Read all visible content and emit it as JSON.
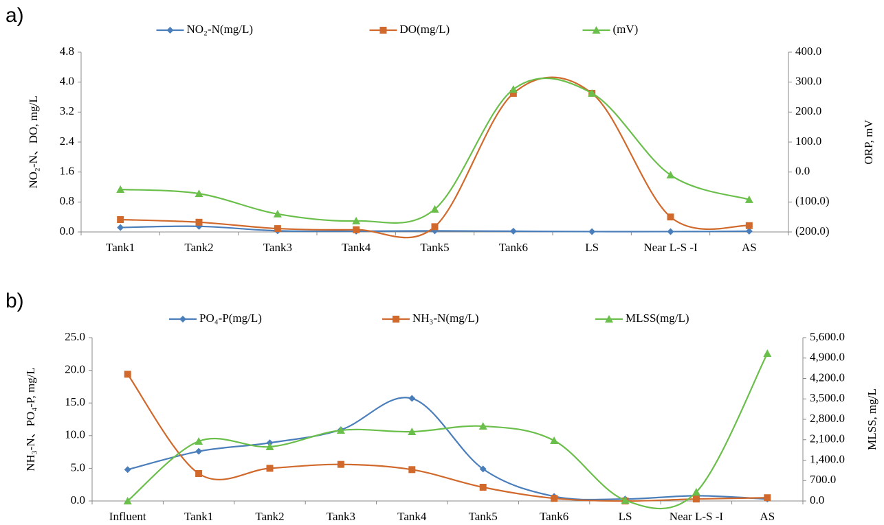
{
  "chart_data": [
    {
      "type": "line",
      "panel_label": "a)",
      "categories": [
        "Tank1",
        "Tank2",
        "Tank3",
        "Tank4",
        "Tank5",
        "Tank6",
        "LS",
        "Near L-S -I",
        "AS"
      ],
      "ylabel": "NO₂-N、DO, mg/L",
      "y2label": "ORP, mV",
      "ylim": [
        0,
        4.8
      ],
      "yticks": [
        {
          "value": 0,
          "label": "0.0"
        },
        0.8,
        1.6,
        2.4,
        3.2,
        {
          "value": 4,
          "label": "4.0"
        },
        4.8
      ],
      "y2lim": [
        -200,
        400
      ],
      "y2ticks": [
        {
          "value": -200,
          "label": "(200.0)"
        },
        {
          "value": -100,
          "label": "(100.0)"
        },
        {
          "value": 0,
          "label": "0.0"
        },
        {
          "value": 100,
          "label": "100.0"
        },
        {
          "value": 200,
          "label": "200.0"
        },
        {
          "value": 300,
          "label": "300.0"
        },
        {
          "value": 400,
          "label": "400.0"
        }
      ],
      "y2tick_negative_color": "#ff0000",
      "legend": "top",
      "series": [
        {
          "name": "NO₂-N(mg/L)",
          "color": "#4a7ebb",
          "marker": "diamond",
          "values": [
            0.12,
            0.15,
            0.03,
            0.02,
            0.03,
            0.02,
            0.01,
            0.01,
            0.02
          ]
        },
        {
          "name": "DO(mg/L)",
          "color": "#d0692b",
          "marker": "square",
          "values": [
            0.33,
            0.26,
            0.09,
            0.06,
            0.14,
            3.7,
            3.7,
            0.4,
            0.17
          ]
        },
        {
          "name": "(mV)",
          "color": "#6abf4b",
          "marker": "triangle",
          "axis": "y2",
          "values": [
            -58,
            -72,
            -140,
            -163,
            -124,
            276,
            263,
            -10,
            -92
          ]
        }
      ]
    },
    {
      "type": "line",
      "panel_label": "b)",
      "categories": [
        "Influent",
        "Tank1",
        "Tank2",
        "Tank3",
        "Tank4",
        "Tank5",
        "Tank6",
        "LS",
        "Near L-S -I",
        "AS"
      ],
      "ylabel": "NH₃-N、PO₄-P, mg/L",
      "y2label": "MLSS, mg/L",
      "ylim": [
        0,
        25
      ],
      "yticks": [
        {
          "value": 0,
          "label": "0.0"
        },
        {
          "value": 5,
          "label": "5.0"
        },
        {
          "value": 10,
          "label": "10.0"
        },
        {
          "value": 15,
          "label": "15.0"
        },
        {
          "value": 20,
          "label": "20.0"
        },
        {
          "value": 25,
          "label": "25.0"
        }
      ],
      "y2lim": [
        0,
        5600
      ],
      "y2ticks": [
        {
          "value": 0,
          "label": "0.0"
        },
        {
          "value": 700,
          "label": "700.0"
        },
        {
          "value": 1400,
          "label": "1,400.0"
        },
        {
          "value": 2100,
          "label": "2,100.0"
        },
        {
          "value": 2800,
          "label": "2,800.0"
        },
        {
          "value": 3500,
          "label": "3,500.0"
        },
        {
          "value": 4200,
          "label": "4,200.0"
        },
        {
          "value": 4900,
          "label": "4,900.0"
        },
        {
          "value": 5600,
          "label": "5,600.0"
        }
      ],
      "legend": "top",
      "series": [
        {
          "name": "PO₄-P(mg/L)",
          "color": "#4a7ebb",
          "marker": "diamond",
          "values": [
            4.8,
            7.6,
            8.9,
            10.9,
            15.7,
            4.9,
            0.7,
            0.3,
            0.8,
            0.3
          ]
        },
        {
          "name": "NH₃-N(mg/L)",
          "color": "#d0692b",
          "marker": "square",
          "values": [
            19.4,
            4.2,
            5.0,
            5.6,
            4.8,
            2.1,
            0.4,
            0.0,
            0.3,
            0.5
          ]
        },
        {
          "name": "MLSS(mg/L)",
          "color": "#6abf4b",
          "marker": "triangle",
          "axis": "y2",
          "values": [
            0,
            2047,
            1859,
            2424,
            2376,
            2565,
            2071,
            24,
            306,
            5059
          ]
        }
      ]
    }
  ]
}
